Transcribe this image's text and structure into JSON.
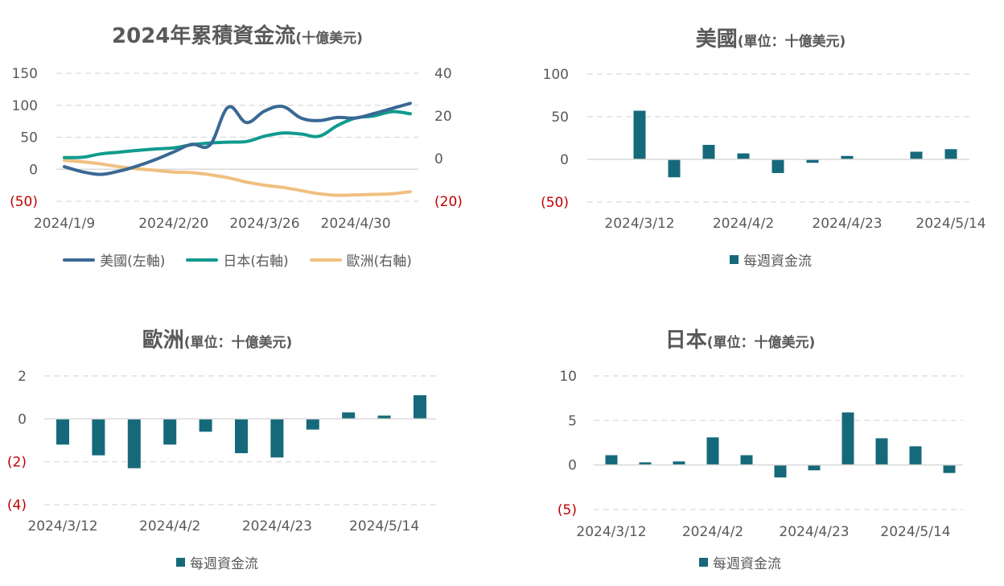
{
  "colors": {
    "us": "#3a6894",
    "japan": "#0f9b8e",
    "europe": "#f0c080",
    "bar": "#16697a",
    "negative_label": "#c00000",
    "grid": "#d9d9d9",
    "text": "#595959"
  },
  "chart_data": [
    {
      "id": "cumulative",
      "type": "line",
      "title": "2024年累積資金流",
      "title_unit": "(十億美元)",
      "yaxis_left": {
        "ticks": [
          "150",
          "100",
          "50",
          "0",
          "(50)"
        ],
        "tick_values": [
          150,
          100,
          50,
          0,
          -50
        ],
        "ylim": [
          -50,
          150
        ]
      },
      "yaxis_right": {
        "ticks": [
          "40",
          "20",
          "0",
          "(20)"
        ],
        "tick_values": [
          40,
          20,
          0,
          -20
        ],
        "ylim": [
          -20,
          40
        ]
      },
      "xaxis": {
        "ticks": [
          "2024/1/9",
          "2024/2/20",
          "2024/3/26",
          "2024/4/30"
        ],
        "tick_values": [
          0,
          6,
          11,
          16
        ]
      },
      "grid": true,
      "legend_position": "bottom",
      "x": [
        0,
        1,
        2,
        3,
        4,
        5,
        6,
        7,
        8,
        9,
        10,
        11,
        12,
        13,
        14,
        15,
        16,
        17,
        18,
        19
      ],
      "series": [
        {
          "name": "美國(左軸)",
          "axis": "left",
          "color": "#3a6894",
          "values": [
            4,
            -4,
            -8,
            -3,
            5,
            15,
            27,
            39,
            38,
            97,
            73,
            91,
            98,
            80,
            76,
            81,
            80,
            87,
            95,
            103
          ]
        },
        {
          "name": "日本(右軸)",
          "axis": "right",
          "color": "#0f9b8e",
          "values": [
            0.5,
            0.6,
            2.2,
            3.0,
            3.8,
            4.5,
            5.0,
            6.5,
            7.3,
            7.7,
            8.0,
            10.5,
            12.0,
            11.5,
            10.5,
            15.5,
            19.0,
            20.0,
            22.0,
            21.0
          ]
        },
        {
          "name": "歐洲(右軸)",
          "axis": "right",
          "color": "#f0c080",
          "values": [
            -0.8,
            -1.5,
            -2.5,
            -3.8,
            -4.8,
            -5.5,
            -6.3,
            -6.6,
            -7.6,
            -9.0,
            -11.0,
            -12.5,
            -13.5,
            -15.0,
            -16.5,
            -17.2,
            -17.0,
            -16.8,
            -16.5,
            -15.5
          ]
        }
      ]
    },
    {
      "id": "us",
      "type": "bar",
      "title": "美國",
      "title_unit": "(單位：十億美元)",
      "yaxis": {
        "ticks": [
          "100",
          "50",
          "0",
          "(50)"
        ],
        "tick_values": [
          100,
          50,
          0,
          -50
        ],
        "ylim": [
          -50,
          100
        ]
      },
      "xaxis": {
        "ticks": [
          "2024/3/12",
          "2024/4/2",
          "2024/4/23",
          "2024/5/14"
        ],
        "tick_values": [
          0,
          3,
          6,
          9
        ]
      },
      "grid": true,
      "legend": "每週資金流",
      "legend_position": "bottom",
      "values": [
        57,
        -21,
        17,
        7,
        -16,
        -4,
        4,
        0,
        9,
        12
      ]
    },
    {
      "id": "europe",
      "type": "bar",
      "title": "歐洲",
      "title_unit": "(單位：十億美元)",
      "yaxis": {
        "ticks": [
          "2",
          "0",
          "(2)",
          "(4)"
        ],
        "tick_values": [
          2,
          0,
          -2,
          -4
        ],
        "ylim": [
          -4,
          2
        ]
      },
      "xaxis": {
        "ticks": [
          "2024/3/12",
          "2024/4/2",
          "2024/4/23",
          "2024/5/14"
        ],
        "tick_values": [
          0,
          3,
          6,
          9
        ]
      },
      "grid": true,
      "legend": "每週資金流",
      "legend_position": "bottom",
      "values": [
        -1.2,
        -1.7,
        -2.3,
        -1.2,
        -0.6,
        -1.6,
        -1.8,
        -0.5,
        0.3,
        0.15,
        1.1
      ]
    },
    {
      "id": "japan",
      "type": "bar",
      "title": "日本",
      "title_unit": "(單位：十億美元)",
      "yaxis": {
        "ticks": [
          "10",
          "5",
          "0",
          "(5)"
        ],
        "tick_values": [
          10,
          5,
          0,
          -5
        ],
        "ylim": [
          -5,
          10
        ]
      },
      "xaxis": {
        "ticks": [
          "2024/3/12",
          "2024/4/2",
          "2024/4/23",
          "2024/5/14"
        ],
        "tick_values": [
          0,
          3,
          6,
          9
        ]
      },
      "grid": true,
      "legend": "每週資金流",
      "legend_position": "bottom",
      "values": [
        1.1,
        0.3,
        0.4,
        3.1,
        1.1,
        -1.4,
        -0.6,
        5.9,
        3.0,
        2.1,
        -0.9
      ]
    }
  ]
}
